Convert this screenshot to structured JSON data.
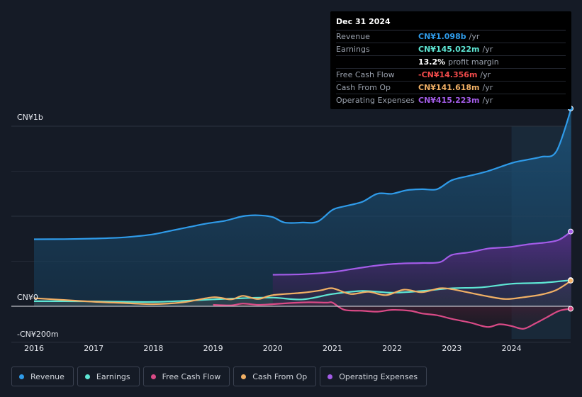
{
  "tooltip": {
    "date": "Dec 31 2024",
    "rows": [
      {
        "label": "Revenue",
        "value": "CN¥1.098b",
        "unit": "/yr",
        "color": "#2f9be9"
      },
      {
        "label": "Earnings",
        "value": "CN¥145.022m",
        "unit": "/yr",
        "color": "#5ee6d4"
      },
      {
        "label": "",
        "value": "13.2%",
        "unit": "profit margin",
        "color": "#ffffff"
      },
      {
        "label": "Free Cash Flow",
        "value": "-CN¥14.356m",
        "unit": "/yr",
        "color": "#ef4a4a"
      },
      {
        "label": "Cash From Op",
        "value": "CN¥141.618m",
        "unit": "/yr",
        "color": "#f1b065"
      },
      {
        "label": "Operating Expenses",
        "value": "CN¥415.223m",
        "unit": "/yr",
        "color": "#a35ce8"
      }
    ]
  },
  "legend": [
    {
      "label": "Revenue",
      "color": "#2f9be9"
    },
    {
      "label": "Earnings",
      "color": "#5ee6d4"
    },
    {
      "label": "Free Cash Flow",
      "color": "#d94a86"
    },
    {
      "label": "Cash From Op",
      "color": "#f1b065"
    },
    {
      "label": "Operating Expenses",
      "color": "#a35ce8"
    }
  ],
  "chart_data": {
    "type": "area",
    "y_tick_labels": [
      "CN¥1b",
      "CN¥0",
      "-CN¥200m"
    ],
    "ylim": [
      -200,
      1100
    ],
    "x_tick_labels": [
      "2016",
      "2017",
      "2018",
      "2019",
      "2020",
      "2021",
      "2022",
      "2023",
      "2024"
    ],
    "xlim": [
      2015.6,
      2025.0
    ],
    "highlight_from": 2024.0,
    "series": [
      {
        "name": "Revenue",
        "color": "#2f9be9",
        "x": [
          2016.0,
          2016.5,
          2017.0,
          2017.3,
          2017.6,
          2018.0,
          2018.3,
          2018.6,
          2018.9,
          2019.2,
          2019.5,
          2019.75,
          2020.0,
          2020.2,
          2020.5,
          2020.75,
          2021.0,
          2021.2,
          2021.5,
          2021.75,
          2022.0,
          2022.25,
          2022.5,
          2022.75,
          2023.0,
          2023.3,
          2023.6,
          2024.0,
          2024.2,
          2024.5,
          2024.75,
          2025.0
        ],
        "values": [
          372,
          373,
          376,
          379,
          385,
          400,
          420,
          440,
          460,
          475,
          500,
          505,
          495,
          465,
          465,
          470,
          535,
          555,
          580,
          625,
          625,
          645,
          650,
          650,
          700,
          725,
          750,
          795,
          810,
          830,
          860,
          1098
        ]
      },
      {
        "name": "Earnings",
        "color": "#5ee6d4",
        "x": [
          2016.0,
          2016.5,
          2017.0,
          2017.5,
          2018.0,
          2018.5,
          2019.0,
          2019.5,
          2020.0,
          2020.5,
          2021.0,
          2021.5,
          2022.0,
          2022.5,
          2023.0,
          2023.5,
          2024.0,
          2024.5,
          2025.0
        ],
        "values": [
          28,
          28,
          27,
          25,
          24,
          30,
          38,
          45,
          48,
          38,
          68,
          85,
          75,
          85,
          100,
          105,
          125,
          130,
          145
        ]
      },
      {
        "name": "Free Cash Flow",
        "color": "#d94a86",
        "x": [
          2019.0,
          2019.3,
          2019.5,
          2019.75,
          2020.0,
          2020.3,
          2020.6,
          2020.9,
          2021.0,
          2021.2,
          2021.5,
          2021.75,
          2022.0,
          2022.3,
          2022.5,
          2022.75,
          2023.0,
          2023.3,
          2023.6,
          2023.8,
          2024.0,
          2024.2,
          2024.4,
          2024.6,
          2024.8,
          2025.0
        ],
        "values": [
          8,
          5,
          15,
          8,
          12,
          18,
          22,
          20,
          20,
          -20,
          -25,
          -30,
          -20,
          -25,
          -40,
          -50,
          -70,
          -90,
          -115,
          -100,
          -110,
          -125,
          -95,
          -60,
          -25,
          -14
        ]
      },
      {
        "name": "Cash From Op",
        "color": "#f1b065",
        "x": [
          2016.0,
          2016.5,
          2017.0,
          2017.5,
          2018.0,
          2018.5,
          2019.0,
          2019.3,
          2019.5,
          2019.75,
          2020.0,
          2020.5,
          2020.8,
          2021.0,
          2021.3,
          2021.6,
          2021.9,
          2022.2,
          2022.5,
          2022.8,
          2023.0,
          2023.3,
          2023.6,
          2023.9,
          2024.2,
          2024.5,
          2024.75,
          2025.0
        ],
        "values": [
          45,
          35,
          25,
          18,
          12,
          22,
          50,
          38,
          58,
          40,
          62,
          75,
          88,
          100,
          68,
          80,
          62,
          92,
          78,
          100,
          95,
          75,
          55,
          40,
          50,
          65,
          90,
          142
        ]
      },
      {
        "name": "Operating Expenses",
        "color": "#a35ce8",
        "x": [
          2020.0,
          2020.5,
          2021.0,
          2021.3,
          2021.6,
          2021.9,
          2022.2,
          2022.5,
          2022.8,
          2023.0,
          2023.3,
          2023.6,
          2023.8,
          2024.0,
          2024.3,
          2024.6,
          2024.8,
          2025.0
        ],
        "values": [
          175,
          178,
          190,
          205,
          220,
          232,
          238,
          240,
          245,
          285,
          300,
          320,
          325,
          330,
          345,
          355,
          370,
          415
        ]
      }
    ]
  }
}
